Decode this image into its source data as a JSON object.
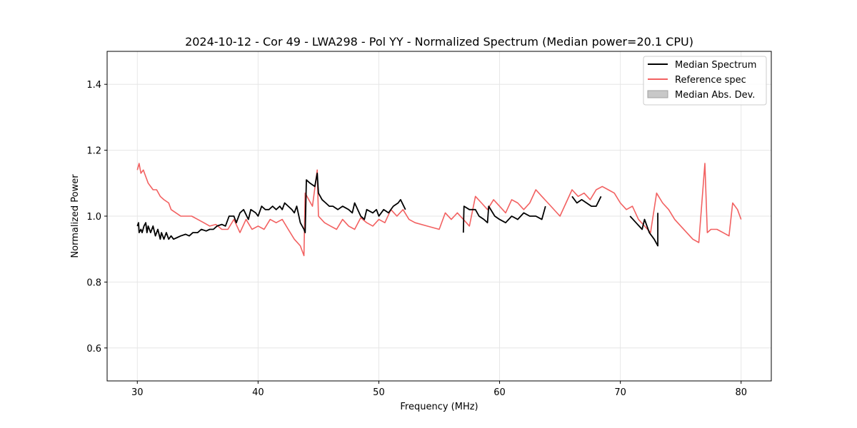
{
  "chart_data": {
    "type": "line",
    "title": "2024-10-12 - Cor 49 - LWA298 - Pol YY - Normalized Spectrum (Median power=20.1 CPU)",
    "xlabel": "Frequency (MHz)",
    "ylabel": "Normalized Power",
    "xlim": [
      27.5,
      82.5
    ],
    "ylim": [
      0.5,
      1.5
    ],
    "xticks": [
      30,
      40,
      50,
      60,
      70,
      80
    ],
    "yticks": [
      0.6,
      0.8,
      1.0,
      1.2,
      1.4
    ],
    "xtick_labels": [
      "30",
      "40",
      "50",
      "60",
      "70",
      "80"
    ],
    "ytick_labels": [
      "0.6",
      "0.8",
      "1.0",
      "1.2",
      "1.4"
    ],
    "grid": true,
    "legend_position": "top-right",
    "legend": [
      {
        "label": "Median Spectrum",
        "kind": "line",
        "color": "#000000"
      },
      {
        "label": "Reference spec",
        "kind": "line",
        "color": "#f26161"
      },
      {
        "label": "Median Abs. Dev.",
        "kind": "patch",
        "color": "#c8c8c8"
      }
    ],
    "series": [
      {
        "name": "Median Spectrum",
        "color": "#000000",
        "segments": [
          [
            [
              30.0,
              0.97
            ],
            [
              30.1,
              0.98
            ],
            [
              30.15,
              0.95
            ],
            [
              30.3,
              0.96
            ],
            [
              30.4,
              0.95
            ],
            [
              30.55,
              0.97
            ],
            [
              30.7,
              0.98
            ],
            [
              30.8,
              0.95
            ],
            [
              30.9,
              0.97
            ],
            [
              31.1,
              0.95
            ],
            [
              31.3,
              0.97
            ],
            [
              31.5,
              0.94
            ],
            [
              31.7,
              0.96
            ],
            [
              31.9,
              0.93
            ],
            [
              32.0,
              0.95
            ],
            [
              32.2,
              0.93
            ],
            [
              32.4,
              0.95
            ],
            [
              32.6,
              0.93
            ],
            [
              32.8,
              0.94
            ],
            [
              33.0,
              0.93
            ],
            [
              33.3,
              0.935
            ],
            [
              33.6,
              0.94
            ],
            [
              34.0,
              0.945
            ],
            [
              34.3,
              0.94
            ],
            [
              34.6,
              0.95
            ],
            [
              35.0,
              0.95
            ],
            [
              35.3,
              0.96
            ],
            [
              35.7,
              0.955
            ],
            [
              36.0,
              0.96
            ],
            [
              36.3,
              0.96
            ],
            [
              36.6,
              0.97
            ],
            [
              37.0,
              0.975
            ],
            [
              37.3,
              0.97
            ],
            [
              37.6,
              1.0
            ],
            [
              38.0,
              1.0
            ],
            [
              38.2,
              0.98
            ],
            [
              38.5,
              1.01
            ],
            [
              38.8,
              1.02
            ],
            [
              39.2,
              0.99
            ],
            [
              39.4,
              1.02
            ],
            [
              39.8,
              1.01
            ],
            [
              40.0,
              1.0
            ],
            [
              40.3,
              1.03
            ],
            [
              40.6,
              1.02
            ],
            [
              40.9,
              1.02
            ],
            [
              41.2,
              1.03
            ],
            [
              41.5,
              1.02
            ],
            [
              41.8,
              1.03
            ],
            [
              42.0,
              1.02
            ],
            [
              42.2,
              1.04
            ],
            [
              42.5,
              1.03
            ],
            [
              42.8,
              1.02
            ],
            [
              43.0,
              1.01
            ],
            [
              43.2,
              1.03
            ],
            [
              43.5,
              0.98
            ],
            [
              43.8,
              0.96
            ],
            [
              43.9,
              0.95
            ],
            [
              44.0,
              1.11
            ],
            [
              44.3,
              1.1
            ],
            [
              44.7,
              1.09
            ],
            [
              44.9,
              1.13
            ],
            [
              45.0,
              1.07
            ],
            [
              45.3,
              1.05
            ],
            [
              45.6,
              1.04
            ],
            [
              45.9,
              1.03
            ],
            [
              46.2,
              1.03
            ],
            [
              46.6,
              1.02
            ],
            [
              47.0,
              1.03
            ],
            [
              47.5,
              1.02
            ],
            [
              47.8,
              1.01
            ],
            [
              48.0,
              1.04
            ],
            [
              48.5,
              1.0
            ],
            [
              48.8,
              0.99
            ],
            [
              49.0,
              1.02
            ],
            [
              49.5,
              1.01
            ],
            [
              49.8,
              1.02
            ],
            [
              50.0,
              1.0
            ],
            [
              50.4,
              1.02
            ],
            [
              50.8,
              1.01
            ],
            [
              51.2,
              1.03
            ],
            [
              51.6,
              1.04
            ],
            [
              51.8,
              1.05
            ],
            [
              52.2,
              1.02
            ]
          ],
          [
            [
              57.0,
              0.95
            ],
            [
              57.05,
              1.03
            ],
            [
              57.5,
              1.02
            ],
            [
              58.0,
              1.02
            ],
            [
              58.3,
              1.0
            ],
            [
              58.7,
              0.99
            ],
            [
              59.0,
              0.98
            ],
            [
              59.1,
              1.03
            ],
            [
              59.6,
              1.0
            ],
            [
              60.0,
              0.99
            ],
            [
              60.5,
              0.98
            ],
            [
              61.0,
              1.0
            ],
            [
              61.5,
              0.99
            ],
            [
              62.0,
              1.01
            ],
            [
              62.5,
              1.0
            ],
            [
              63.0,
              1.0
            ],
            [
              63.5,
              0.99
            ],
            [
              63.8,
              1.03
            ]
          ],
          [
            [
              66.0,
              1.06
            ],
            [
              66.4,
              1.04
            ],
            [
              66.8,
              1.05
            ],
            [
              67.2,
              1.04
            ],
            [
              67.6,
              1.03
            ],
            [
              68.0,
              1.03
            ],
            [
              68.4,
              1.06
            ]
          ],
          [
            [
              70.8,
              1.0
            ],
            [
              71.3,
              0.98
            ],
            [
              71.8,
              0.96
            ],
            [
              72.0,
              0.99
            ],
            [
              72.4,
              0.95
            ],
            [
              72.8,
              0.93
            ],
            [
              73.1,
              0.91
            ],
            [
              73.1,
              1.01
            ]
          ]
        ]
      },
      {
        "name": "Reference spec",
        "color": "#f26161",
        "segments": [
          [
            [
              30.0,
              1.14
            ],
            [
              30.15,
              1.16
            ],
            [
              30.3,
              1.13
            ],
            [
              30.5,
              1.14
            ],
            [
              30.7,
              1.12
            ],
            [
              30.9,
              1.1
            ],
            [
              31.1,
              1.09
            ],
            [
              31.3,
              1.08
            ],
            [
              31.6,
              1.08
            ],
            [
              31.9,
              1.06
            ],
            [
              32.2,
              1.05
            ],
            [
              32.6,
              1.04
            ],
            [
              32.8,
              1.02
            ],
            [
              33.2,
              1.01
            ],
            [
              33.6,
              1.0
            ],
            [
              34.0,
              1.0
            ],
            [
              34.5,
              1.0
            ],
            [
              35.0,
              0.99
            ],
            [
              35.5,
              0.98
            ],
            [
              36.0,
              0.97
            ],
            [
              36.5,
              0.975
            ],
            [
              37.0,
              0.96
            ],
            [
              37.5,
              0.96
            ],
            [
              38.0,
              0.99
            ],
            [
              38.5,
              0.95
            ],
            [
              39.0,
              0.99
            ],
            [
              39.5,
              0.96
            ],
            [
              40.0,
              0.97
            ],
            [
              40.5,
              0.96
            ],
            [
              41.0,
              0.99
            ],
            [
              41.5,
              0.98
            ],
            [
              42.0,
              0.99
            ],
            [
              42.5,
              0.96
            ],
            [
              43.0,
              0.93
            ],
            [
              43.5,
              0.91
            ],
            [
              43.8,
              0.88
            ],
            [
              43.9,
              1.07
            ],
            [
              44.5,
              1.03
            ],
            [
              44.9,
              1.14
            ],
            [
              45.0,
              1.0
            ],
            [
              45.5,
              0.98
            ],
            [
              46.0,
              0.97
            ],
            [
              46.5,
              0.96
            ],
            [
              47.0,
              0.99
            ],
            [
              47.5,
              0.97
            ],
            [
              48.0,
              0.96
            ],
            [
              48.5,
              0.995
            ],
            [
              49.0,
              0.98
            ],
            [
              49.5,
              0.97
            ],
            [
              50.0,
              0.99
            ],
            [
              50.5,
              0.98
            ],
            [
              51.0,
              1.02
            ],
            [
              51.5,
              1.0
            ],
            [
              52.0,
              1.02
            ],
            [
              52.5,
              0.99
            ],
            [
              53.0,
              0.98
            ],
            [
              54.0,
              0.97
            ],
            [
              55.0,
              0.96
            ],
            [
              55.5,
              1.01
            ],
            [
              56.0,
              0.99
            ],
            [
              56.5,
              1.01
            ],
            [
              57.0,
              0.99
            ],
            [
              57.5,
              0.97
            ],
            [
              58.0,
              1.06
            ],
            [
              58.5,
              1.04
            ],
            [
              59.0,
              1.02
            ],
            [
              59.5,
              1.05
            ],
            [
              60.0,
              1.03
            ],
            [
              60.5,
              1.01
            ],
            [
              61.0,
              1.05
            ],
            [
              61.5,
              1.04
            ],
            [
              62.0,
              1.02
            ],
            [
              62.5,
              1.04
            ],
            [
              63.0,
              1.08
            ],
            [
              63.5,
              1.06
            ],
            [
              64.0,
              1.04
            ],
            [
              65.0,
              1.0
            ],
            [
              66.0,
              1.08
            ],
            [
              66.5,
              1.06
            ],
            [
              67.0,
              1.07
            ],
            [
              67.5,
              1.05
            ],
            [
              68.0,
              1.08
            ],
            [
              68.5,
              1.09
            ],
            [
              69.0,
              1.08
            ],
            [
              69.5,
              1.07
            ],
            [
              70.0,
              1.04
            ],
            [
              70.5,
              1.02
            ],
            [
              71.0,
              1.03
            ],
            [
              71.5,
              0.99
            ],
            [
              72.0,
              0.97
            ],
            [
              72.5,
              0.95
            ],
            [
              73.0,
              1.07
            ],
            [
              73.5,
              1.04
            ],
            [
              74.0,
              1.02
            ],
            [
              74.5,
              0.99
            ],
            [
              75.0,
              0.97
            ],
            [
              75.5,
              0.95
            ],
            [
              76.0,
              0.93
            ],
            [
              76.5,
              0.92
            ],
            [
              77.0,
              1.16
            ],
            [
              77.2,
              0.95
            ],
            [
              77.5,
              0.96
            ],
            [
              78.0,
              0.96
            ],
            [
              78.5,
              0.95
            ],
            [
              79.0,
              0.94
            ],
            [
              79.3,
              1.04
            ],
            [
              79.7,
              1.02
            ],
            [
              80.0,
              0.99
            ]
          ]
        ]
      }
    ]
  }
}
